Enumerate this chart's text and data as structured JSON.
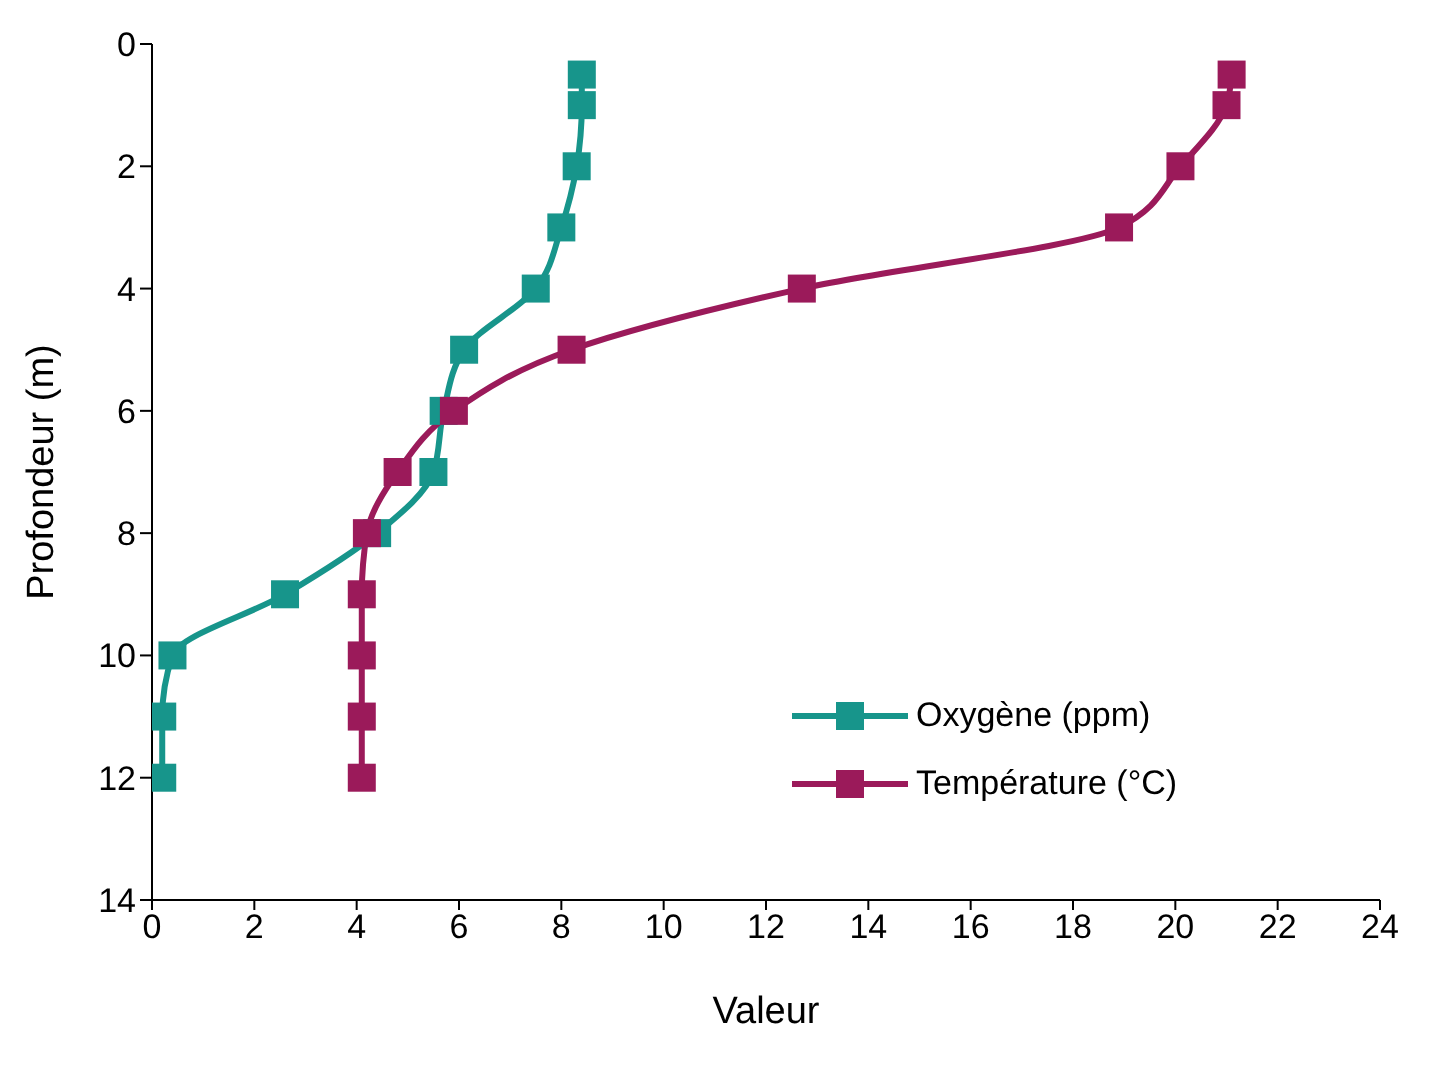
{
  "chart_data": {
    "type": "line",
    "xlabel": "Valeur",
    "ylabel": "Profondeur (m)",
    "orientation": "horizontal",
    "x": [
      0.5,
      1,
      2,
      3,
      4,
      5,
      6,
      7,
      8,
      9,
      10,
      11,
      12
    ],
    "series": [
      {
        "name": "Oxygène (ppm)",
        "color": "#17958b",
        "values": [
          8.4,
          8.4,
          8.3,
          8.0,
          7.5,
          6.1,
          5.7,
          5.5,
          4.4,
          2.6,
          0.4,
          0.2,
          0.2
        ]
      },
      {
        "name": "Température (°C)",
        "color": "#9b1a5a",
        "values": [
          21.1,
          21.0,
          20.1,
          18.9,
          12.7,
          8.2,
          5.9,
          4.8,
          4.2,
          4.1,
          4.1,
          4.1,
          4.1
        ]
      }
    ],
    "xlim": [
      0,
      24
    ],
    "xticks": [
      0,
      2,
      4,
      6,
      8,
      10,
      12,
      14,
      16,
      18,
      20,
      22,
      24
    ],
    "ylim": [
      14,
      0
    ],
    "yticks": [
      0,
      2,
      4,
      6,
      8,
      10,
      12,
      14
    ],
    "grid": false,
    "legend": "bottom right",
    "marker": "square",
    "line_style": "solid"
  }
}
